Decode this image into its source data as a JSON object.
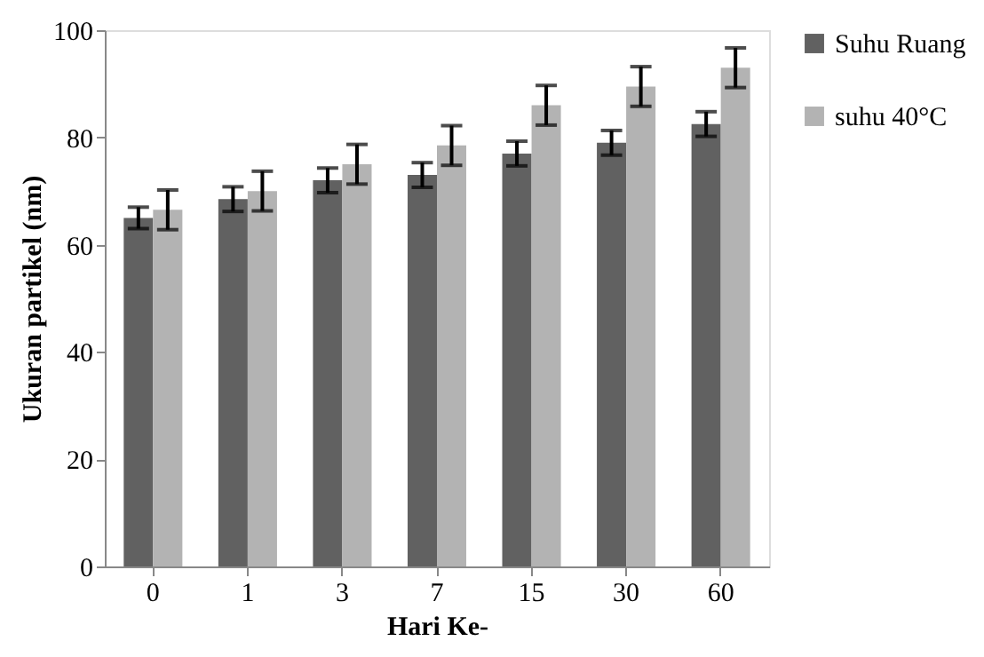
{
  "chart_data": {
    "type": "bar",
    "xlabel": "Hari Ke-",
    "ylabel": "Ukuran partikel (nm)",
    "categories": [
      "0",
      "1",
      "3",
      "7",
      "15",
      "30",
      "60"
    ],
    "series": [
      {
        "name": "Suhu Ruang",
        "color": "#616161",
        "values": [
          65,
          68.5,
          72,
          73,
          77,
          79,
          82.5
        ],
        "errors": [
          2,
          2.3,
          2.3,
          2.3,
          2.3,
          2.3,
          2.3
        ]
      },
      {
        "name": "suhu 40°C",
        "color": "#b3b3b3",
        "values": [
          66.5,
          70,
          75,
          78.5,
          86,
          89.5,
          93
        ],
        "errors": [
          3.7,
          3.7,
          3.7,
          3.7,
          3.7,
          3.7,
          3.7
        ]
      }
    ],
    "ylim": [
      0,
      100
    ],
    "yticks": [
      0,
      20,
      40,
      60,
      80,
      100
    ],
    "grid": false,
    "legend": "right"
  }
}
